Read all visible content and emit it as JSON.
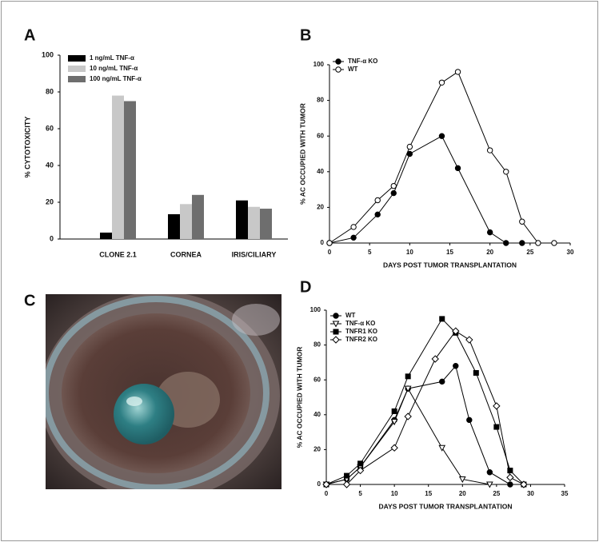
{
  "chart_data": [
    {
      "type": "bar",
      "panel_label": "A",
      "ylabel": "% CYTOTOXICITY",
      "categories": [
        "CLONE 2.1",
        "CORNEA",
        "IRIS/CILIARY"
      ],
      "series": [
        {
          "name": "1 ng/mL TNF-α",
          "color": "#000000",
          "values": [
            3.5,
            13.5,
            21
          ]
        },
        {
          "name": "10 ng/mL TNF-α",
          "color": "#c8c8c8",
          "values": [
            78,
            19,
            17.5
          ]
        },
        {
          "name": "100 ng/mL TNF-α",
          "color": "#6e6e6e",
          "values": [
            75,
            24,
            16.5
          ]
        }
      ],
      "ylim": [
        0,
        100
      ],
      "yticks": [
        0,
        20,
        40,
        60,
        80,
        100
      ]
    },
    {
      "type": "line",
      "panel_label": "B",
      "xlabel": "DAYS POST TUMOR TRANSPLANTATION",
      "ylabel": "% AC OCCUPIED WITH TUMOR",
      "series": [
        {
          "name": "TNF-α KO",
          "color": "#000000",
          "marker": "circle",
          "filled": true,
          "x": [
            0,
            3,
            6,
            8,
            10,
            14,
            16,
            20,
            22,
            24
          ],
          "values": [
            0,
            3,
            16,
            28,
            50,
            60,
            42,
            6,
            0,
            0
          ]
        },
        {
          "name": "WT",
          "color": "#000000",
          "marker": "circle",
          "filled": false,
          "x": [
            0,
            3,
            6,
            8,
            10,
            14,
            16,
            20,
            22,
            24,
            26,
            28
          ],
          "values": [
            0,
            9,
            24,
            32,
            54,
            90,
            96,
            52,
            40,
            12,
            0,
            0
          ]
        }
      ],
      "xlim": [
        0,
        30
      ],
      "xticks": [
        0,
        5,
        10,
        15,
        20,
        25,
        30
      ],
      "ylim": [
        0,
        100
      ],
      "yticks": [
        0,
        20,
        40,
        60,
        80,
        100
      ]
    },
    {
      "type": "line",
      "panel_label": "D",
      "xlabel": "DAYS POST TUMOR TRANSPLANTATION",
      "ylabel": "% AC OCCUPIED WITH TUMOR",
      "series": [
        {
          "name": "WT",
          "color": "#000000",
          "marker": "circle",
          "filled": true,
          "x": [
            0,
            3,
            5,
            10,
            12,
            17,
            19,
            21,
            24,
            27,
            29
          ],
          "values": [
            0,
            3,
            10,
            37,
            55,
            59,
            68,
            37,
            7,
            0,
            0
          ]
        },
        {
          "name": "TNF-α KO",
          "color": "#000000",
          "marker": "triangle-down",
          "filled": false,
          "x": [
            0,
            3,
            5,
            10,
            12,
            17,
            20,
            24
          ],
          "values": [
            0,
            3,
            10,
            36,
            55,
            21,
            3,
            0
          ]
        },
        {
          "name": "TNFR1 KO",
          "color": "#000000",
          "marker": "square",
          "filled": true,
          "x": [
            0,
            3,
            5,
            10,
            12,
            17,
            19,
            22,
            25,
            27,
            29
          ],
          "values": [
            0,
            5,
            12,
            42,
            62,
            95,
            87,
            64,
            33,
            8,
            0
          ]
        },
        {
          "name": "TNFR2 KO",
          "color": "#000000",
          "marker": "diamond",
          "filled": false,
          "x": [
            0,
            3,
            5,
            10,
            12,
            16,
            19,
            21,
            25,
            27,
            29
          ],
          "values": [
            0,
            0,
            8,
            21,
            39,
            72,
            88,
            83,
            45,
            4,
            0
          ]
        }
      ],
      "xlim": [
        0,
        35
      ],
      "xticks": [
        0,
        5,
        10,
        15,
        20,
        25,
        30,
        35
      ],
      "ylim": [
        0,
        100
      ],
      "yticks": [
        0,
        20,
        40,
        60,
        80,
        100
      ]
    }
  ],
  "photo_panel": {
    "panel_label": "C"
  }
}
